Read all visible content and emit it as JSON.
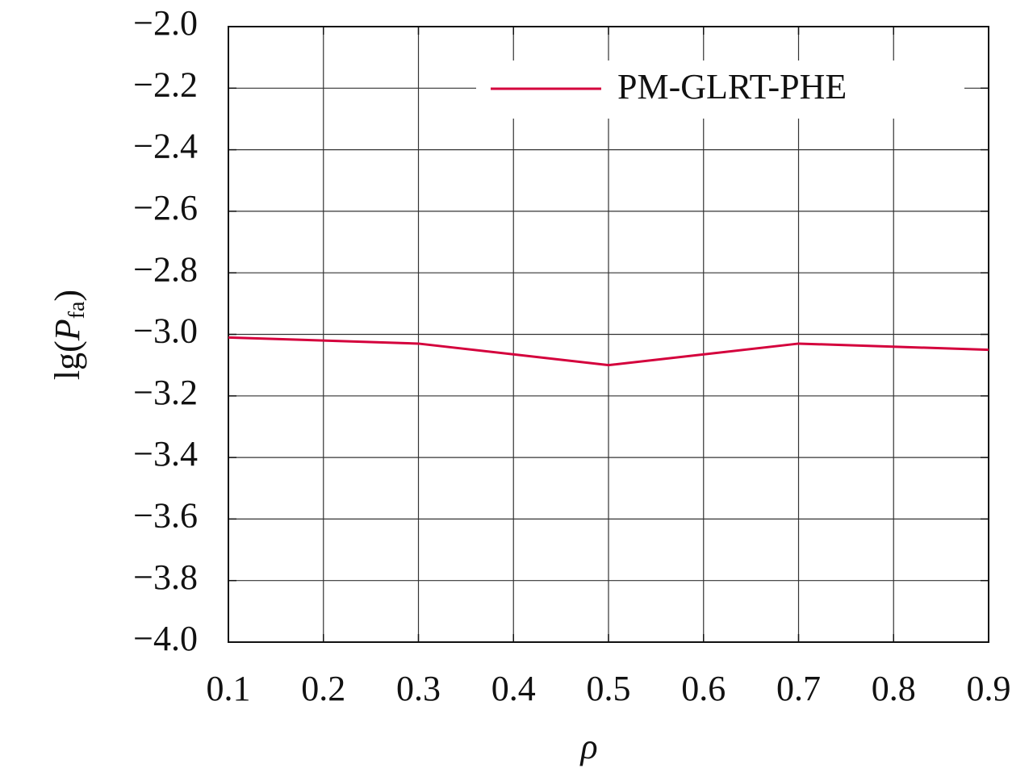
{
  "chart_data": {
    "type": "line",
    "xlabel": "ρ",
    "ylabel": {
      "prefix": "lg(",
      "symbol": "P",
      "subscript": "fa",
      "suffix": ")"
    },
    "x": [
      0.1,
      0.3,
      0.5,
      0.7,
      0.9
    ],
    "series": [
      {
        "name": "PM-GLRT-PHE",
        "color": "#d4003c",
        "values": [
          -3.01,
          -3.03,
          -3.1,
          -3.03,
          -3.05
        ]
      }
    ],
    "xlim": [
      0.1,
      0.9
    ],
    "xticks": [
      0.1,
      0.2,
      0.3,
      0.4,
      0.5,
      0.6,
      0.7,
      0.8,
      0.9
    ],
    "ylim": [
      -4.0,
      -2.0
    ],
    "yticks": [
      {
        "value": -4.0,
        "label": "−4.0"
      },
      {
        "value": -3.8,
        "label": "−3.8"
      },
      {
        "value": -3.6,
        "label": "−3.6"
      },
      {
        "value": -3.4,
        "label": "−3.4"
      },
      {
        "value": -3.2,
        "label": "−3.2"
      },
      {
        "value": -3.0,
        "label": "−3.0"
      },
      {
        "value": -2.8,
        "label": "−2.8"
      },
      {
        "value": -2.6,
        "label": "−2.6"
      },
      {
        "value": -2.4,
        "label": "−2.4"
      },
      {
        "value": -2.2,
        "label": "−2.2"
      },
      {
        "value": -2.0,
        "label": "−2.0"
      }
    ],
    "grid": true,
    "legend": "upper-right"
  }
}
